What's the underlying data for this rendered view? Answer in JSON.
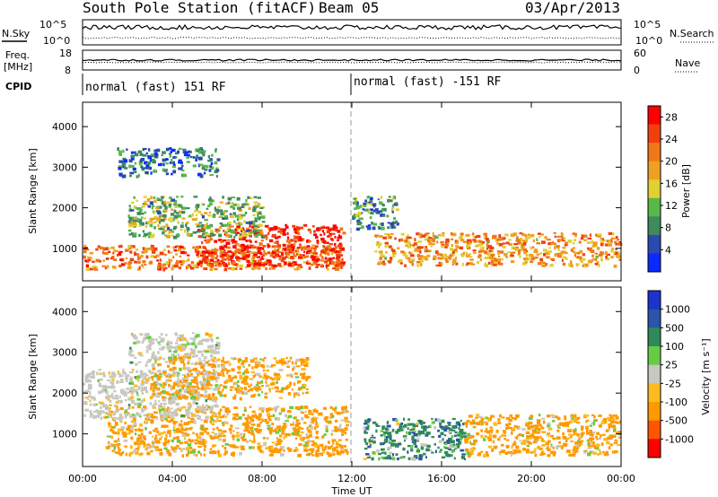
{
  "header": {
    "station": "South Pole Station (fitACF)",
    "beam": "Beam 05",
    "date": "03/Apr/2013"
  },
  "left_labels": {
    "nsky": "N.Sky",
    "freq_line1": "Freq.",
    "freq_line2": "[MHz]",
    "cpid": "CPID"
  },
  "right_labels": {
    "nsearch": "N.Search",
    "nave": "Nave"
  },
  "noise_axis": {
    "left_ticks": [
      "10^5",
      "10^0"
    ],
    "right_ticks": [
      "10^5",
      "10^0"
    ]
  },
  "freq_axis": {
    "left_ticks": [
      "18",
      "8"
    ],
    "right_ticks": [
      "60",
      "0"
    ]
  },
  "cpid_segments": [
    {
      "label": "normal (fast) 151 RF",
      "start": "00:00"
    },
    {
      "label": "normal (fast) -151 RF",
      "start": "12:00"
    }
  ],
  "colors": {
    "power_scale": [
      "#0a2bff",
      "#2a4ab0",
      "#3f8a5e",
      "#58b84a",
      "#e0d030",
      "#f0a020",
      "#f07818",
      "#f04010",
      "#ff0000"
    ],
    "velocity_scale": [
      "#ff0000",
      "#ff5500",
      "#ff9900",
      "#ffbb22",
      "#c8c8c0",
      "#66cc44",
      "#2f8a5a",
      "#2a55a8",
      "#1c33cc"
    ],
    "grey_flag": "#c8c8c0"
  },
  "chart_data": [
    {
      "type": "heatmap",
      "name": "power",
      "ylabel": "Slant Range [km]",
      "y_ticks": [
        "1000",
        "2000",
        "3000",
        "4000"
      ],
      "ylim": [
        200,
        4600
      ],
      "x_ticks": [
        "00:00",
        "04:00",
        "08:00",
        "12:00",
        "16:00",
        "20:00",
        "00:00"
      ],
      "colorbar": {
        "label": "Power [dB]",
        "ticks": [
          "4",
          "8",
          "12",
          "16",
          "20",
          "24",
          "28"
        ],
        "range": [
          0,
          30
        ]
      },
      "features": [
        {
          "t_start": 0.0,
          "t_end": 11.6,
          "range_start": 500,
          "range_end": 1100,
          "value": 22
        },
        {
          "t_start": 5.0,
          "t_end": 11.6,
          "range_start": 600,
          "range_end": 1600,
          "value": 28
        },
        {
          "t_start": 2.0,
          "t_end": 8.0,
          "range_start": 1300,
          "range_end": 2300,
          "value": 12
        },
        {
          "t_start": 1.5,
          "t_end": 6.0,
          "range_start": 2800,
          "range_end": 3500,
          "value": 6
        },
        {
          "t_start": 13.0,
          "t_end": 23.9,
          "range_start": 600,
          "range_end": 1400,
          "value": 20
        },
        {
          "t_start": 12.0,
          "t_end": 14.0,
          "range_start": 1500,
          "range_end": 2300,
          "value": 8
        }
      ]
    },
    {
      "type": "heatmap",
      "name": "velocity",
      "ylabel": "Slant Range [km]",
      "y_ticks": [
        "1000",
        "2000",
        "3000",
        "4000"
      ],
      "ylim": [
        200,
        4600
      ],
      "x_ticks": [
        "00:00",
        "04:00",
        "08:00",
        "12:00",
        "16:00",
        "20:00",
        "00:00"
      ],
      "xlabel": "Time UT",
      "colorbar": {
        "label": "Velocity [m s⁻¹]",
        "ticks": [
          "1000",
          "500",
          "100",
          "25",
          "-25",
          "-100",
          "-500",
          "-1000"
        ]
      },
      "features": [
        {
          "t_start": 1.0,
          "t_end": 11.8,
          "range_start": 500,
          "range_end": 1700,
          "value": -200
        },
        {
          "t_start": 0.0,
          "t_end": 6.0,
          "range_start": 1400,
          "range_end": 2600,
          "value": 0
        },
        {
          "t_start": 2.0,
          "t_end": 6.0,
          "range_start": 2700,
          "range_end": 3500,
          "value": 0
        },
        {
          "t_start": 3.0,
          "t_end": 10.0,
          "range_start": 1900,
          "range_end": 2900,
          "value": -200
        },
        {
          "t_start": 12.5,
          "t_end": 17.0,
          "range_start": 400,
          "range_end": 1400,
          "value": 300
        },
        {
          "t_start": 17.0,
          "t_end": 23.9,
          "range_start": 500,
          "range_end": 1500,
          "value": -200
        }
      ]
    }
  ]
}
